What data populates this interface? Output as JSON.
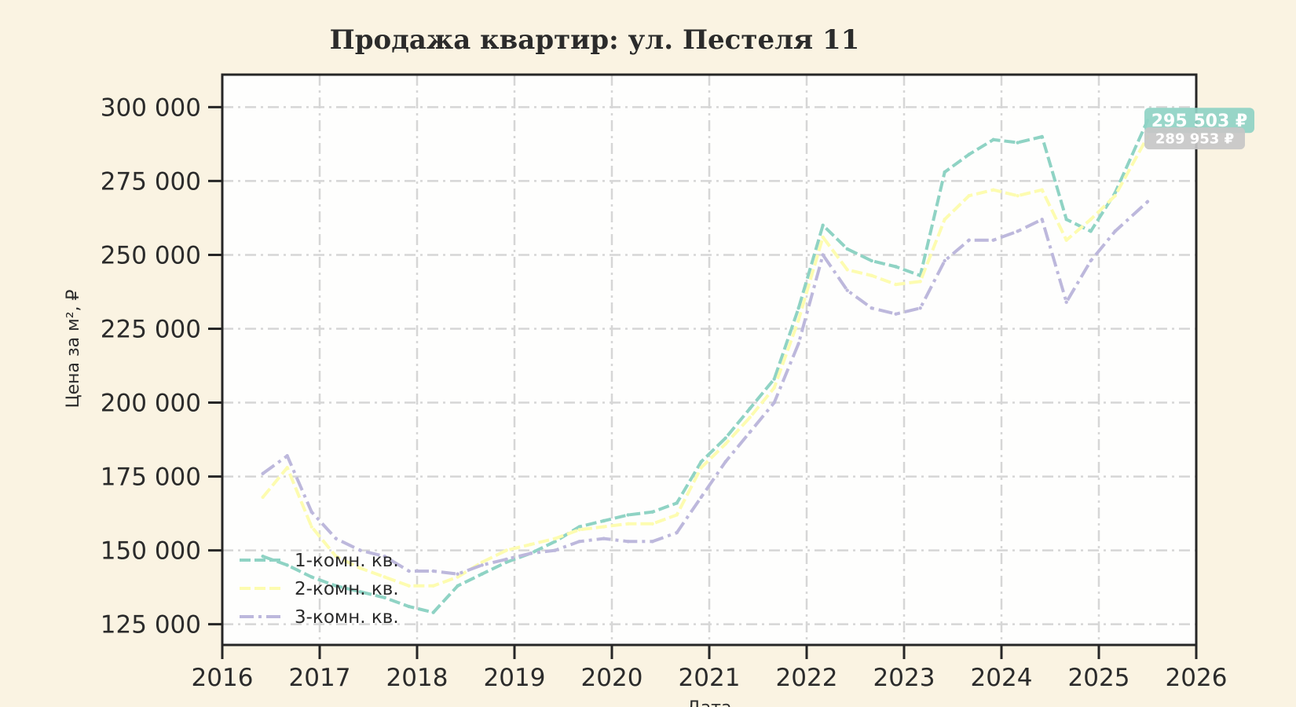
{
  "chart_data": {
    "type": "line",
    "title": "Продажа квартир: ул. Пестеля 11",
    "xlabel": "Дата",
    "ylabel": "Цена за м², ₽",
    "xlim": [
      2016,
      2026
    ],
    "ylim": [
      118000,
      311000
    ],
    "x_ticks": [
      "2016",
      "2017",
      "2018",
      "2019",
      "2020",
      "2021",
      "2022",
      "2023",
      "2024",
      "2025",
      "2026"
    ],
    "y_ticks": [
      125000,
      150000,
      175000,
      200000,
      225000,
      250000,
      275000,
      300000
    ],
    "y_tick_labels": [
      "125 000",
      "150 000",
      "175 000",
      "200 000",
      "225 000",
      "250 000",
      "275 000",
      "300 000"
    ],
    "grid": true,
    "legend_position": "lower-left",
    "series": [
      {
        "name": "1-комн. кв.",
        "color": "#8fd3c4",
        "style": "dashed",
        "x": [
          "2016-06",
          "2016-09",
          "2016-12",
          "2017-03",
          "2017-06",
          "2017-09",
          "2017-12",
          "2018-03",
          "2018-06",
          "2018-09",
          "2018-12",
          "2019-03",
          "2019-06",
          "2019-09",
          "2019-12",
          "2020-03",
          "2020-06",
          "2020-09",
          "2020-12",
          "2021-03",
          "2021-06",
          "2021-09",
          "2021-12",
          "2022-03",
          "2022-06",
          "2022-09",
          "2022-12",
          "2023-03",
          "2023-06",
          "2023-09",
          "2023-12",
          "2024-03",
          "2024-06",
          "2024-09",
          "2024-12",
          "2025-03",
          "2025-07"
        ],
        "y": [
          148000,
          145000,
          141000,
          138000,
          136000,
          134000,
          131000,
          129000,
          138000,
          142000,
          146000,
          149000,
          153000,
          158000,
          160000,
          162000,
          163000,
          166000,
          180000,
          188000,
          198000,
          208000,
          232000,
          260000,
          252000,
          248000,
          246000,
          243000,
          278000,
          284000,
          289000,
          288000,
          290000,
          262000,
          258000,
          271000,
          295503
        ]
      },
      {
        "name": "2-комн. кв.",
        "color": "#fdfcb0",
        "style": "dashed",
        "x": [
          "2016-06",
          "2016-09",
          "2016-12",
          "2017-03",
          "2017-06",
          "2017-09",
          "2017-12",
          "2018-03",
          "2018-06",
          "2018-09",
          "2018-12",
          "2019-03",
          "2019-06",
          "2019-09",
          "2019-12",
          "2020-03",
          "2020-06",
          "2020-09",
          "2020-12",
          "2021-03",
          "2021-06",
          "2021-09",
          "2021-12",
          "2022-03",
          "2022-06",
          "2022-09",
          "2022-12",
          "2023-03",
          "2023-06",
          "2023-09",
          "2023-12",
          "2024-03",
          "2024-06",
          "2024-09",
          "2024-12",
          "2025-03",
          "2025-07"
        ],
        "y": [
          168000,
          178000,
          158000,
          148000,
          144000,
          141000,
          138000,
          138000,
          141000,
          146000,
          150000,
          152000,
          154000,
          157000,
          158000,
          159000,
          159000,
          162000,
          178000,
          186000,
          195000,
          205000,
          228000,
          256000,
          245000,
          243000,
          240000,
          241000,
          262000,
          270000,
          272000,
          270000,
          272000,
          255000,
          262000,
          270000,
          289953
        ]
      },
      {
        "name": "3-комн. кв.",
        "color": "#bdb8dc",
        "style": "dashdot",
        "x": [
          "2016-06",
          "2016-09",
          "2016-12",
          "2017-03",
          "2017-06",
          "2017-09",
          "2017-12",
          "2018-03",
          "2018-06",
          "2018-09",
          "2018-12",
          "2019-03",
          "2019-06",
          "2019-09",
          "2019-12",
          "2020-03",
          "2020-06",
          "2020-09",
          "2020-12",
          "2021-03",
          "2021-06",
          "2021-09",
          "2021-12",
          "2022-03",
          "2022-06",
          "2022-09",
          "2022-12",
          "2023-03",
          "2023-06",
          "2023-09",
          "2023-12",
          "2024-03",
          "2024-06",
          "2024-09",
          "2024-12",
          "2025-03",
          "2025-07"
        ],
        "y": [
          176000,
          182000,
          163000,
          154000,
          150000,
          148000,
          143000,
          143000,
          142000,
          145000,
          147000,
          149000,
          150000,
          153000,
          154000,
          153000,
          153000,
          156000,
          168000,
          180000,
          190000,
          200000,
          220000,
          250000,
          238000,
          232000,
          230000,
          232000,
          248000,
          255000,
          255000,
          258000,
          262000,
          234000,
          248000,
          258000,
          268000
        ]
      }
    ],
    "end_labels": [
      {
        "text": "295 503 ₽",
        "color": "#8fd3c4"
      },
      {
        "text": "289 953 ₽",
        "color": "#c7c7c7"
      }
    ]
  }
}
